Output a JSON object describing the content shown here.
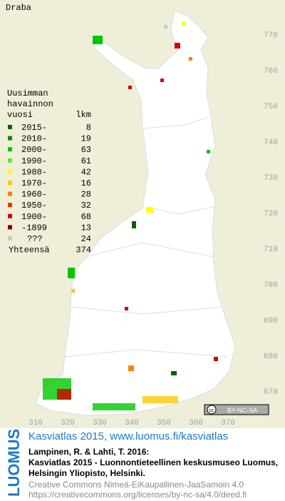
{
  "title": "Draba",
  "legend": {
    "heading": [
      "Uusimman",
      "havainnon",
      "vuosi"
    ],
    "count_heading": "lkm",
    "entries": [
      {
        "label": "2015-",
        "count": 8,
        "color": "#006400"
      },
      {
        "label": "2010-",
        "count": 19,
        "color": "#008c00"
      },
      {
        "label": "2000-",
        "count": 63,
        "color": "#00c800"
      },
      {
        "label": "1990-",
        "count": 61,
        "color": "#50f030"
      },
      {
        "label": "1980-",
        "count": 42,
        "color": "#ffff00"
      },
      {
        "label": "1970-",
        "count": 16,
        "color": "#ffc800"
      },
      {
        "label": "1960-",
        "count": 28,
        "color": "#ff8000"
      },
      {
        "label": "1950-",
        "count": 32,
        "color": "#f03000"
      },
      {
        "label": "1900-",
        "count": 68,
        "color": "#d00000"
      },
      {
        "label": "-1899",
        "count": 13,
        "color": "#800000"
      },
      {
        "label": "???",
        "count": 24,
        "color": "#c8c8c8"
      }
    ],
    "total_label": "Yhteensä",
    "total": 374
  },
  "grid": {
    "northing": [
      770,
      760,
      750,
      740,
      730,
      720,
      710,
      700,
      690,
      680,
      670
    ],
    "easting": [
      310,
      320,
      330,
      340,
      350,
      360,
      370
    ]
  },
  "license_badge": "BY-NC-SA",
  "footer": {
    "logo": "LUOMUS",
    "link": "Kasviatlas 2015, www.luomus.fi/kasviatlas",
    "citation": [
      "Lampinen, R. & Lahti, T. 2016:",
      "Kasviatlas 2015 - Luonnontieteellinen keskusmuseo Luomus,",
      "Helsingin Yliopisto, Helsinki."
    ],
    "license": [
      "Creative Commons Nimeä-EiKaupallinen-JaaSamoin 4.0",
      "https://creativecommons.org/licenses/by-nc-sa/4.0/deed.fi"
    ]
  }
}
